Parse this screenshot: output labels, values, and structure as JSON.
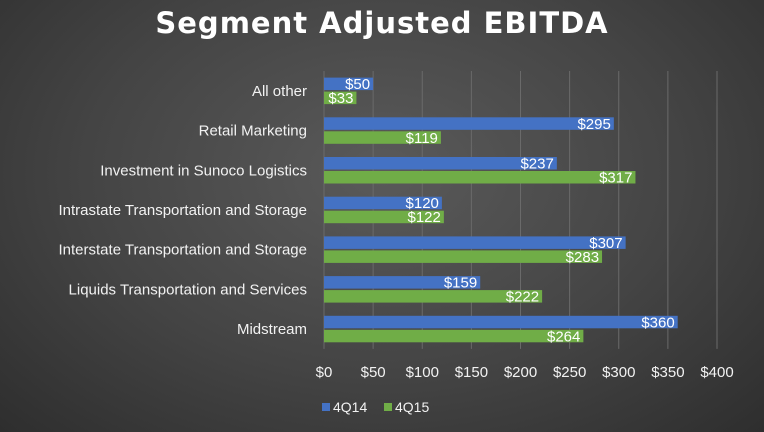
{
  "chart_data": {
    "type": "bar",
    "orientation": "horizontal",
    "title": "Segment Adjusted EBITDA",
    "categories": [
      "All other",
      "Retail Marketing",
      "Investment in Sunoco Logistics",
      "Intrastate Transportation and Storage",
      "Interstate Transportation and Storage",
      "Liquids Transportation and Services",
      "Midstream"
    ],
    "series": [
      {
        "name": "4Q14",
        "color": "#4472C4",
        "values": [
          50,
          295,
          237,
          120,
          307,
          159,
          360
        ],
        "labels": [
          "$50",
          "$295",
          "$237",
          "$120",
          "$307",
          "$159",
          "$360"
        ]
      },
      {
        "name": "4Q15",
        "color": "#70AD47",
        "values": [
          33,
          119,
          317,
          122,
          283,
          222,
          264
        ],
        "labels": [
          "$33",
          "$119",
          "$317",
          "$122",
          "$283",
          "$222",
          "$264"
        ]
      }
    ],
    "xlim": [
      0,
      400
    ],
    "xticks": [
      0,
      50,
      100,
      150,
      200,
      250,
      300,
      350,
      400
    ],
    "xtick_labels": [
      "$0",
      "$50",
      "$100",
      "$150",
      "$200",
      "$250",
      "$300",
      "$350",
      "$400"
    ],
    "grid": "vertical",
    "legend_position": "bottom"
  }
}
